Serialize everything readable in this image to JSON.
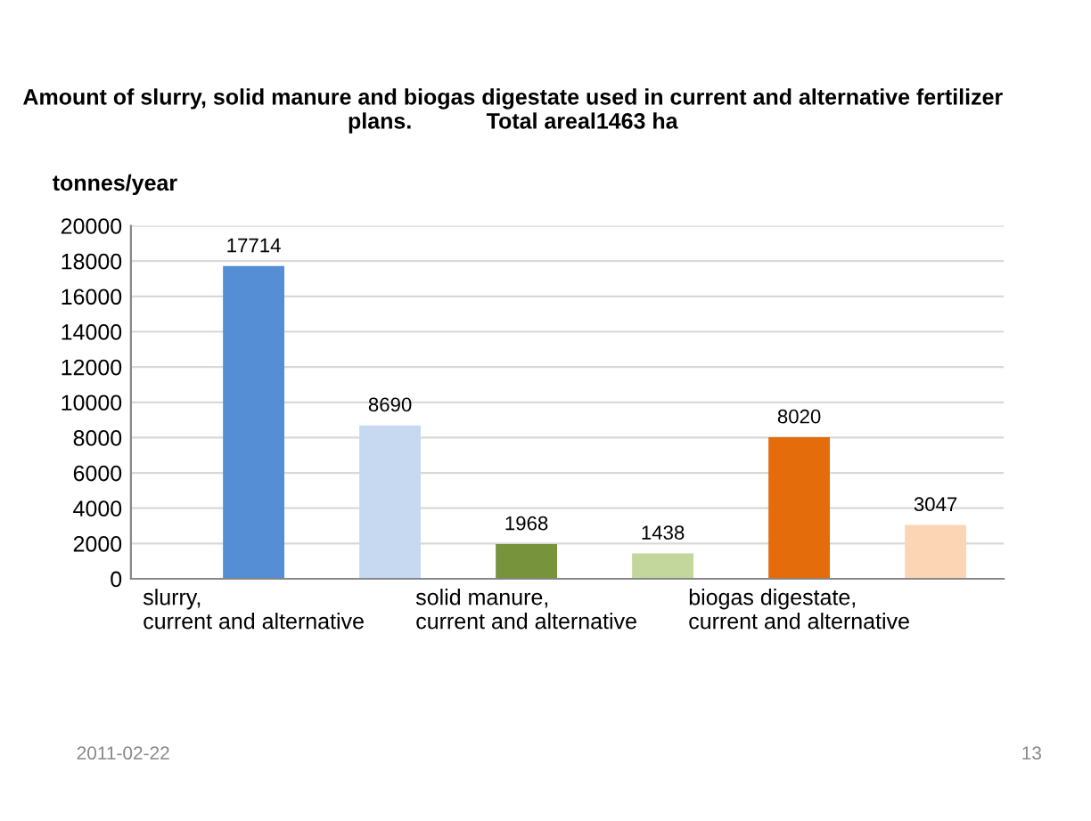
{
  "chart_data": {
    "type": "bar",
    "title": "Amount of slurry, solid manure and biogas digestate used in current and alternative fertilizer plans.            Total areal1463 ha",
    "ylabel": "tonnes/year",
    "categories": [
      "slurry,\ncurrent and alternative",
      null,
      "solid manure,\ncurrent and alternative",
      null,
      "biogas digestate,\ncurrent and alternative",
      null
    ],
    "values": [
      17714,
      8690,
      1968,
      1438,
      8020,
      3047
    ],
    "colors": [
      "#558ed5",
      "#c6d9f1",
      "#77933c",
      "#c3d69b",
      "#e46c0a",
      "#fcd5b5"
    ],
    "ylim": [
      0,
      20000
    ],
    "yticks": [
      0,
      2000,
      4000,
      6000,
      8000,
      10000,
      12000,
      14000,
      16000,
      18000,
      20000
    ],
    "grid": "y",
    "data_labels": true,
    "annotations": [
      "2011-02-22",
      "13"
    ]
  }
}
